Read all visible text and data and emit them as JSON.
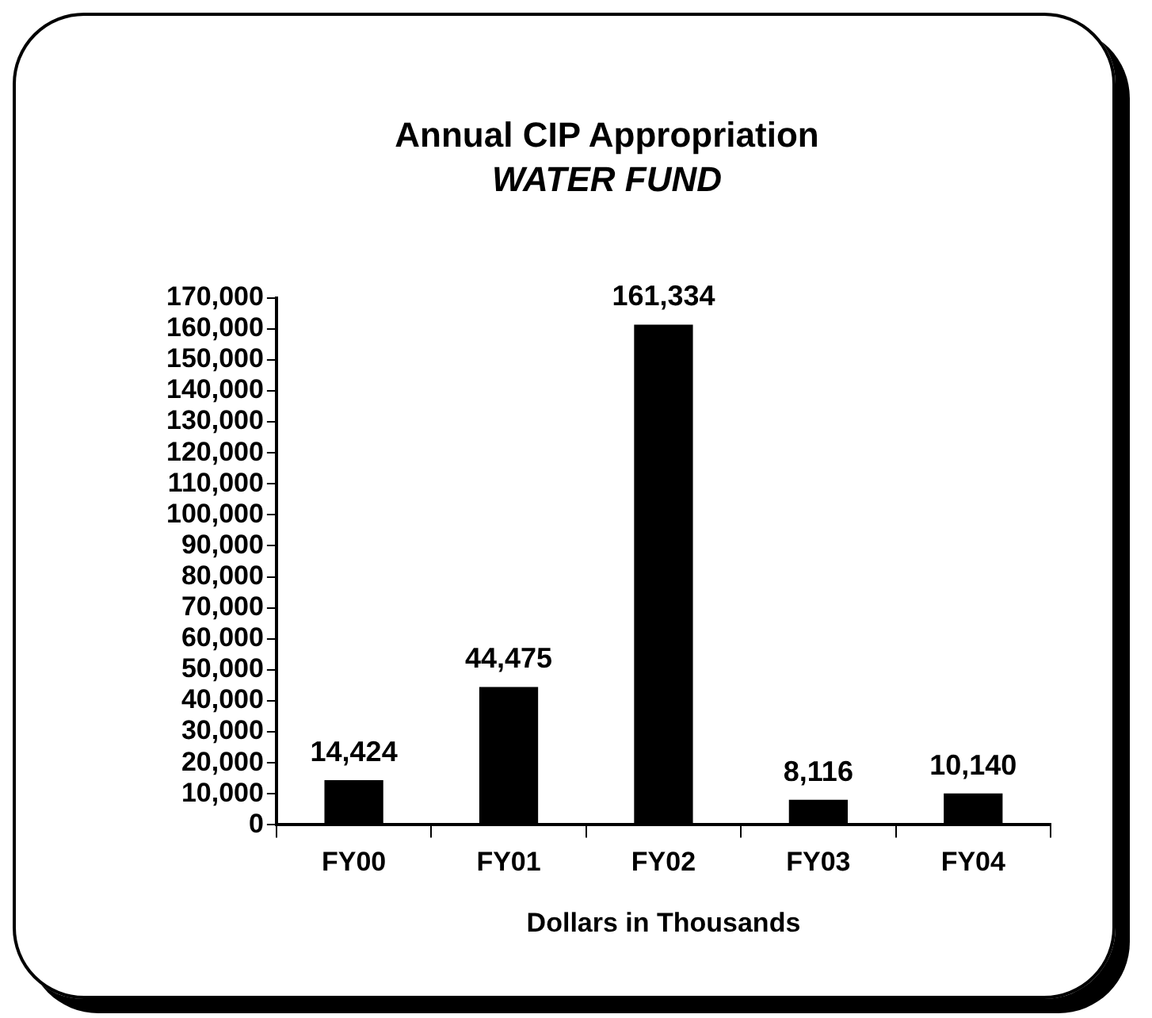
{
  "chart_data": {
    "type": "bar",
    "title": "Annual CIP Appropriation",
    "subtitle": "WATER FUND",
    "xlabel": "Dollars in Thousands",
    "categories": [
      "FY00",
      "FY01",
      "FY02",
      "FY03",
      "FY04"
    ],
    "values": [
      14424,
      44475,
      161334,
      8116,
      10140
    ],
    "color": "#000000",
    "value_labels": [
      "14,424",
      "44,475",
      "161,334",
      "8,116",
      "10,140"
    ],
    "ylim": [
      0,
      170000
    ],
    "yticks": [
      0,
      {
        "value": 10000,
        "label": "10,000"
      },
      {
        "value": 20000,
        "label": "20,000"
      },
      {
        "value": 30000,
        "label": "30,000"
      },
      {
        "value": 40000,
        "label": "40,000"
      },
      {
        "value": 50000,
        "label": "50,000"
      },
      {
        "value": 60000,
        "label": "60,000"
      },
      {
        "value": 70000,
        "label": "70,000"
      },
      {
        "value": 80000,
        "label": "80,000"
      },
      {
        "value": 90000,
        "label": "90,000"
      },
      {
        "value": 100000,
        "label": "100,000"
      },
      {
        "value": 110000,
        "label": "110,000"
      },
      {
        "value": 120000,
        "label": "120,000"
      },
      {
        "value": 130000,
        "label": "130,000"
      },
      {
        "value": 140000,
        "label": "140,000"
      },
      {
        "value": 150000,
        "label": "150,000"
      },
      {
        "value": 160000,
        "label": "160,000"
      },
      {
        "value": 170000,
        "label": "170,000"
      }
    ],
    "grid": false,
    "legend": false
  }
}
